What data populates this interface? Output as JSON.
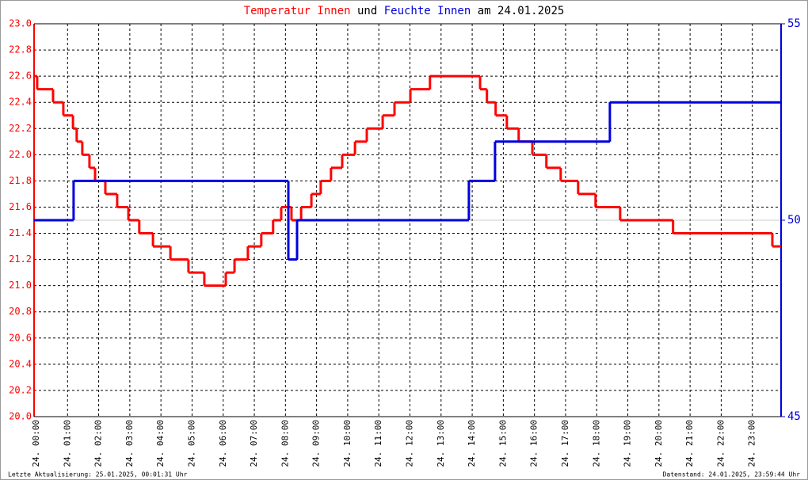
{
  "chart_data": {
    "type": "step",
    "title": [
      "Temperatur Innen",
      "und",
      "Feuchte Innen",
      "am 24.01.2025"
    ],
    "footer_left": "Letzte Aktualisierung: 25.01.2025, 00:01:31 Uhr",
    "footer_right": "Datenstand: 24.01.2025, 23:59:44 Uhr",
    "xlim": [
      0,
      24
    ],
    "xticks": [
      {
        "value": 0,
        "label": "24. 00:00"
      },
      {
        "value": 1,
        "label": "24. 01:00"
      },
      {
        "value": 2,
        "label": "24. 02:00"
      },
      {
        "value": 3,
        "label": "24. 03:00"
      },
      {
        "value": 4,
        "label": "24. 04:00"
      },
      {
        "value": 5,
        "label": "24. 05:00"
      },
      {
        "value": 6,
        "label": "24. 06:00"
      },
      {
        "value": 7,
        "label": "24. 07:00"
      },
      {
        "value": 8,
        "label": "24. 08:00"
      },
      {
        "value": 9,
        "label": "24. 09:00"
      },
      {
        "value": 10,
        "label": "24. 10:00"
      },
      {
        "value": 11,
        "label": "24. 11:00"
      },
      {
        "value": 12,
        "label": "24. 12:00"
      },
      {
        "value": 13,
        "label": "24. 13:00"
      },
      {
        "value": 14,
        "label": "24. 14:00"
      },
      {
        "value": 15,
        "label": "24. 15:00"
      },
      {
        "value": 16,
        "label": "24. 16:00"
      },
      {
        "value": 17,
        "label": "24. 17:00"
      },
      {
        "value": 18,
        "label": "24. 18:00"
      },
      {
        "value": 19,
        "label": "24. 19:00"
      },
      {
        "value": 20,
        "label": "24. 20:00"
      },
      {
        "value": 21,
        "label": "24. 21:00"
      },
      {
        "value": 22,
        "label": "24. 22:00"
      },
      {
        "value": 23,
        "label": "24. 23:00"
      }
    ],
    "ylim": [
      20,
      23
    ],
    "yticks": [
      {
        "value": 20,
        "label": "20.0"
      },
      20.2,
      20.4,
      20.6,
      20.8,
      {
        "value": 21,
        "label": "21.0"
      },
      21.2,
      21.4,
      21.6,
      21.8,
      {
        "value": 22,
        "label": "22.0"
      },
      22.2,
      22.4,
      22.6,
      22.8,
      {
        "value": 23,
        "label": "23.0"
      }
    ],
    "y2lim": [
      45,
      55
    ],
    "y2ticks": [
      45,
      50,
      55
    ],
    "grid": true,
    "series": [
      {
        "name": "Temperatur Innen",
        "color": "#ff0000",
        "x": [
          0,
          0.1,
          0.61,
          0.94,
          1.25,
          1.37,
          1.55,
          1.78,
          1.96,
          2.29,
          2.67,
          3.03,
          3.38,
          3.82,
          4.38,
          4.96,
          5.47,
          6.16,
          6.44,
          6.87,
          7.3,
          7.68,
          7.94,
          8.27,
          8.58,
          8.91,
          9.21,
          9.54,
          9.9,
          10.31,
          10.69,
          11.2,
          11.58,
          12.09,
          12.72,
          14.33,
          14.55,
          14.83,
          15.19,
          15.57,
          16.01,
          16.46,
          16.92,
          17.48,
          18.04,
          18.83,
          20.53,
          23.72,
          24
        ],
        "values": [
          22.6,
          22.5,
          22.4,
          22.3,
          22.2,
          22.1,
          22.0,
          21.9,
          21.8,
          21.7,
          21.6,
          21.5,
          21.4,
          21.3,
          21.2,
          21.1,
          21.0,
          21.1,
          21.2,
          21.3,
          21.4,
          21.5,
          21.6,
          21.5,
          21.6,
          21.7,
          21.8,
          21.9,
          22.0,
          22.1,
          22.2,
          22.3,
          22.4,
          22.5,
          22.6,
          22.5,
          22.4,
          22.3,
          22.2,
          22.1,
          22.0,
          21.9,
          21.8,
          21.7,
          21.6,
          21.5,
          21.4,
          21.3,
          21.3
        ]
      },
      {
        "name": "Feuchte Innen",
        "color": "#0000dd",
        "axis": "y2",
        "x": [
          0,
          1.27,
          8.17,
          8.45,
          13.97,
          14.81,
          18.5,
          24
        ],
        "values": [
          50,
          51,
          49,
          50,
          51,
          52,
          53,
          53
        ]
      }
    ]
  }
}
